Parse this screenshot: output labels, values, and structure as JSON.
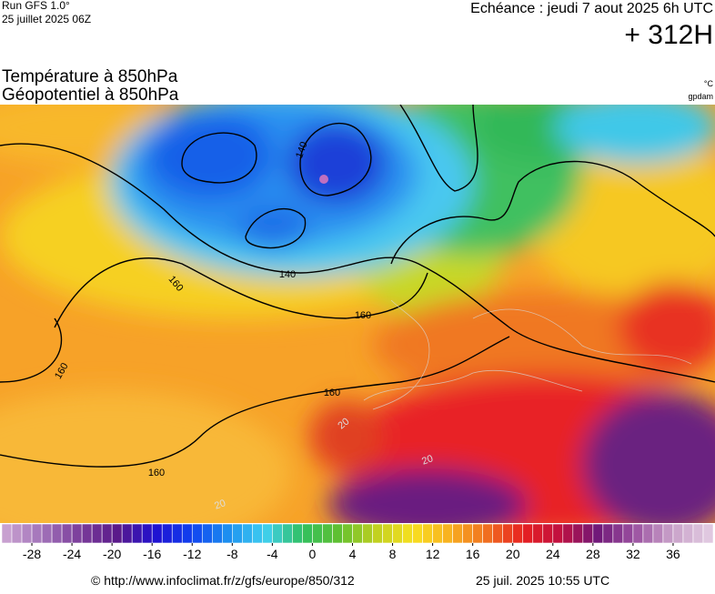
{
  "header": {
    "run": "Run GFS 1.0°",
    "date": "25 juillet 2025 06Z",
    "echeance": "Echéance : jeudi 7 aout 2025 6h UTC",
    "lead": "+ 312H"
  },
  "titles": {
    "line1": "Température à 850hPa",
    "line2": "Géopotentiel à 850hPa",
    "unit1": "°C",
    "unit2": "gpdam"
  },
  "map": {
    "contour_labels": [
      "140",
      "140",
      "160",
      "160",
      "160",
      "160",
      "160",
      "20",
      "20",
      "20"
    ]
  },
  "colorbar": {
    "range": [
      -31,
      40
    ],
    "ticks": [
      -28,
      -24,
      -20,
      -16,
      -12,
      -8,
      -4,
      0,
      4,
      8,
      12,
      16,
      20,
      24,
      28,
      32,
      36
    ],
    "colors": [
      "#c8a0d0",
      "#a070b8",
      "#7a3c9a",
      "#5a1a8a",
      "#2010d0",
      "#1040f0",
      "#1c90f0",
      "#40d0f0",
      "#30c060",
      "#60c030",
      "#c0d020",
      "#f8e020",
      "#f8b020",
      "#f07020",
      "#e82020",
      "#c01040",
      "#701878",
      "#9a50a0",
      "#c8a0c8",
      "#e0c8e0"
    ]
  },
  "footer": {
    "url": "© http://www.infoclimat.fr/z/gfs/europe/850/312",
    "generated": "25 juil. 2025 10:55 UTC"
  }
}
